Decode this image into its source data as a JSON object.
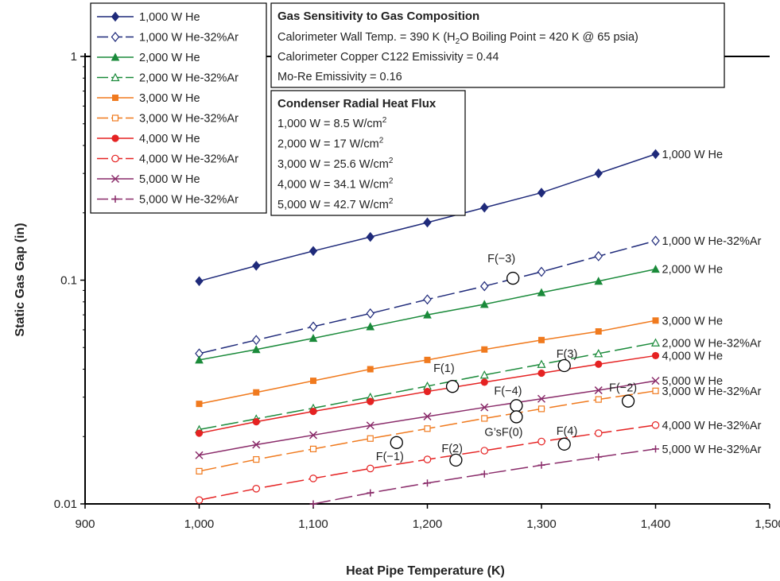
{
  "chart_data": {
    "type": "line",
    "title": "",
    "xlabel": "Heat Pipe Temperature (K)",
    "ylabel": "Static Gas Gap (in)",
    "xlim": [
      900,
      1500
    ],
    "ylim": [
      0.01,
      1
    ],
    "y_scale": "log",
    "x_ticks": [
      900,
      1000,
      1100,
      1200,
      1300,
      1400,
      1500
    ],
    "x_tick_labels": [
      "900",
      "1,000",
      "1,100",
      "1,200",
      "1,300",
      "1,400",
      "1,500"
    ],
    "y_ticks": [
      0.01,
      0.1,
      1
    ],
    "y_tick_labels": [
      "0.01",
      "0.1",
      "1"
    ],
    "grid": false,
    "legend_position": "top-left",
    "x": [
      1000,
      1050,
      1100,
      1150,
      1200,
      1250,
      1300,
      1350,
      1400
    ],
    "series": [
      {
        "name": "1,000 W He",
        "end_label": "1,000 W He",
        "color": "#1f2a7a",
        "marker": "diamond-filled",
        "dash": "solid",
        "values": [
          0.099,
          0.116,
          0.135,
          0.156,
          0.181,
          0.211,
          0.246,
          0.3,
          0.366
        ]
      },
      {
        "name": "1,000 W He-32%Ar",
        "end_label": "1,000 W He-32%Ar",
        "color": "#1f2a7a",
        "marker": "diamond-open",
        "dash": "dashed",
        "values": [
          0.047,
          0.054,
          0.062,
          0.071,
          0.082,
          0.094,
          0.109,
          0.128,
          0.15
        ]
      },
      {
        "name": "2,000 W He",
        "end_label": "2,000 W He",
        "color": "#1a8a3a",
        "marker": "triangle-filled",
        "dash": "solid",
        "values": [
          0.044,
          0.049,
          0.055,
          0.062,
          0.07,
          0.078,
          0.088,
          0.099,
          0.112
        ]
      },
      {
        "name": "2,000 W He-32%Ar",
        "end_label": "2,000 W He-32%Ar",
        "color": "#1a8a3a",
        "marker": "triangle-open",
        "dash": "dashed",
        "values": [
          0.0215,
          0.024,
          0.0268,
          0.03,
          0.0336,
          0.0377,
          0.0421,
          0.047,
          0.0525
        ]
      },
      {
        "name": "3,000 W He",
        "end_label": "3,000 W He",
        "color": "#f07a1e",
        "marker": "square-filled",
        "dash": "solid",
        "values": [
          0.028,
          0.0315,
          0.0355,
          0.04,
          0.044,
          0.049,
          0.054,
          0.059,
          0.066
        ]
      },
      {
        "name": "3,000 W He-32%Ar",
        "end_label": "3,000 W He-32%Ar",
        "color": "#f07a1e",
        "marker": "square-open",
        "dash": "dashed",
        "values": [
          0.014,
          0.0158,
          0.0176,
          0.0196,
          0.0217,
          0.0241,
          0.0266,
          0.0293,
          0.032
        ]
      },
      {
        "name": "4,000 W He",
        "end_label": "4,000 W He",
        "color": "#e52222",
        "marker": "circle-filled",
        "dash": "solid",
        "values": [
          0.0207,
          0.0233,
          0.0259,
          0.0287,
          0.0318,
          0.035,
          0.0384,
          0.0421,
          0.046
        ]
      },
      {
        "name": "4,000 W He-32%Ar",
        "end_label": "4,000 W He-32%Ar",
        "color": "#e52222",
        "marker": "circle-open",
        "dash": "dashed",
        "values": [
          0.0104,
          0.0117,
          0.013,
          0.0144,
          0.0158,
          0.0173,
          0.019,
          0.0207,
          0.0225
        ]
      },
      {
        "name": "5,000 W He",
        "end_label": "5,000 W He",
        "color": "#8a2c6a",
        "marker": "x",
        "dash": "solid",
        "values": [
          0.0165,
          0.0184,
          0.0203,
          0.0224,
          0.0246,
          0.027,
          0.0295,
          0.0322,
          0.0355
        ]
      },
      {
        "name": "5,000 W He-32%Ar",
        "end_label": "5,000 W He-32%Ar",
        "color": "#8a2c6a",
        "marker": "plus",
        "dash": "dashed",
        "x": [
          1100,
          1150,
          1200,
          1250,
          1300,
          1350,
          1400
        ],
        "values": [
          0.01,
          0.0112,
          0.0124,
          0.0136,
          0.0149,
          0.0162,
          0.0176
        ]
      }
    ],
    "annotation_labels": [
      {
        "text": "F(−3)",
        "x": 1275,
        "y": 0.102
      },
      {
        "text": "F(1)",
        "x": 1222,
        "y": 0.0335
      },
      {
        "text": "F(3)",
        "x": 1320,
        "y": 0.0415
      },
      {
        "text": "F(−4)",
        "x": 1278,
        "y": 0.0275
      },
      {
        "text": "G’sF(0)",
        "x": 1278,
        "y": 0.0245
      },
      {
        "text": "F(−1)",
        "x": 1173,
        "y": 0.0188
      },
      {
        "text": "F(2)",
        "x": 1225,
        "y": 0.0157
      },
      {
        "text": "F(4)",
        "x": 1320,
        "y": 0.0185
      },
      {
        "text": "F(−2)",
        "x": 1376,
        "y": 0.0288
      }
    ],
    "info_box": {
      "title": "Gas Sensitivity to Gas Composition",
      "line1_a": "Calorimeter Wall Temp. = 390 K (H",
      "line1_sub": "2",
      "line1_b": "O Boiling Point = 420 K @ 65 psia)",
      "line2": "Calorimeter Copper C122 Emissivity = 0.44",
      "line3": "Mo-Re Emissivity = 0.16"
    },
    "flux_box": {
      "title": "Condenser Radial Heat Flux",
      "unit_sup": "2",
      "items": [
        "1,000 W = 8.5 W/cm",
        "2,000 W = 17 W/cm",
        "3,000 W = 25.6 W/cm",
        "4,000 W = 34.1 W/cm",
        "5,000 W = 42.7 W/cm"
      ]
    }
  }
}
